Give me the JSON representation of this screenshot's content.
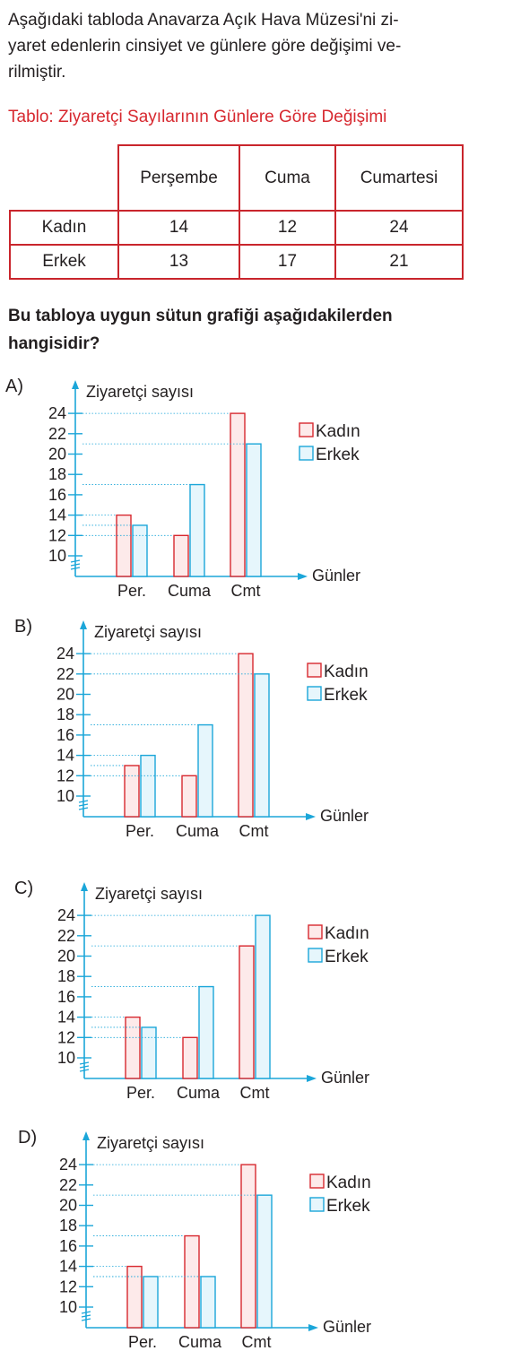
{
  "intro": "Aşağıdaki tabloda Anavarza Açık Hava Müzesi'ni ziyaret edenlerin cinsiyet ve günlere göre değişimi verilmiştir.",
  "intro_lines": [
    "Aşağıdaki tabloda Anavarza Açık Hava Müzesi'ni zi-",
    "yaret edenlerin cinsiyet ve günlere göre değişimi ve-",
    "rilmiştir."
  ],
  "table_title": "Tablo: Ziyaretçi Sayılarının Günlere Göre Değişimi",
  "table": {
    "columns": [
      "Perşembe",
      "Cuma",
      "Cumartesi"
    ],
    "rows": [
      {
        "label": "Kadın",
        "values": [
          14,
          12,
          24
        ]
      },
      {
        "label": "Erkek",
        "values": [
          13,
          17,
          21
        ]
      }
    ]
  },
  "question_lines": [
    "Bu tabloya uygun sütun grafiği aşağıdakilerden",
    "hangisidir?"
  ],
  "colors": {
    "table_border": "#c9252c",
    "title_red": "#d7282f",
    "kadin": "#d7282f",
    "erkek": "#1ba6d9",
    "axis": "#1ba6d9",
    "kadin_fill": "#fdeaea",
    "erkek_fill": "#e6f6fc"
  },
  "chart_data": [
    {
      "option": "A)",
      "type": "bar",
      "ylabel": "Ziyaretçi sayısı",
      "xlabel": "Günler",
      "categories": [
        "Per.",
        "Cuma",
        "Cmt"
      ],
      "ylim": [
        10,
        24
      ],
      "yticks": [
        10,
        12,
        14,
        16,
        18,
        20,
        22,
        24
      ],
      "series": [
        {
          "name": "Kadın",
          "values": [
            14,
            12,
            24
          ]
        },
        {
          "name": "Erkek",
          "values": [
            13,
            17,
            21
          ]
        }
      ]
    },
    {
      "option": "B)",
      "type": "bar",
      "ylabel": "Ziyaretçi sayısı",
      "xlabel": "Günler",
      "categories": [
        "Per.",
        "Cuma",
        "Cmt"
      ],
      "ylim": [
        10,
        24
      ],
      "yticks": [
        10,
        12,
        14,
        16,
        18,
        20,
        22,
        24
      ],
      "series": [
        {
          "name": "Kadın",
          "values": [
            13,
            12,
            24
          ]
        },
        {
          "name": "Erkek",
          "values": [
            14,
            17,
            22
          ]
        }
      ]
    },
    {
      "option": "C)",
      "type": "bar",
      "ylabel": "Ziyaretçi sayısı",
      "xlabel": "Günler",
      "categories": [
        "Per.",
        "Cuma",
        "Cmt"
      ],
      "ylim": [
        10,
        24
      ],
      "yticks": [
        10,
        12,
        14,
        16,
        18,
        20,
        22,
        24
      ],
      "series": [
        {
          "name": "Kadın",
          "values": [
            14,
            12,
            21
          ]
        },
        {
          "name": "Erkek",
          "values": [
            13,
            17,
            24
          ]
        }
      ]
    },
    {
      "option": "D)",
      "type": "bar",
      "ylabel": "Ziyaretçi sayısı",
      "xlabel": "Günler",
      "categories": [
        "Per.",
        "Cuma",
        "Cmt"
      ],
      "ylim": [
        10,
        24
      ],
      "yticks": [
        10,
        12,
        14,
        16,
        18,
        20,
        22,
        24
      ],
      "series": [
        {
          "name": "Kadın",
          "values": [
            14,
            17,
            24
          ]
        },
        {
          "name": "Erkek",
          "values": [
            13,
            13,
            21
          ]
        }
      ]
    }
  ]
}
